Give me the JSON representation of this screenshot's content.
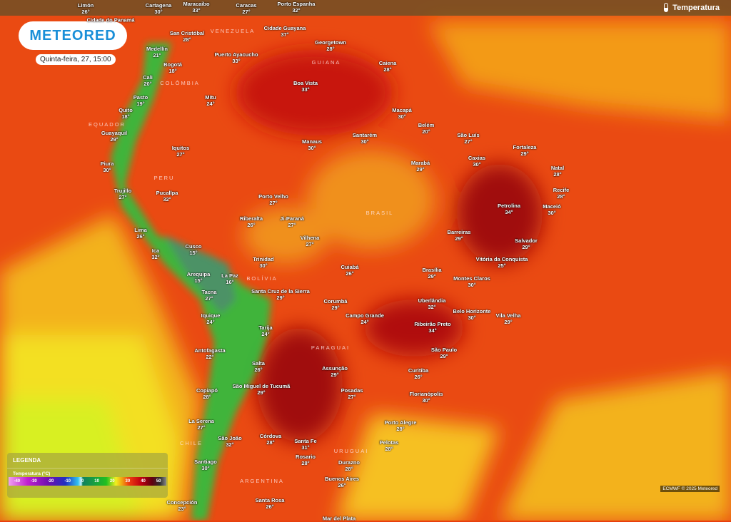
{
  "header": {
    "layer_label": "Temperatura",
    "layer_icon": "thermometer-icon"
  },
  "brand": {
    "logo_text": "METEORED",
    "datetime": "Quinta-feira, 27, 15:00"
  },
  "legend": {
    "title": "LEGENDA",
    "subtitle": "Temperatura (°C)",
    "ticks": [
      "-40",
      "-30",
      "-20",
      "-10",
      "0",
      "10",
      "20",
      "30",
      "40",
      "50"
    ]
  },
  "credit": "ECMWF © 2025 Meteored",
  "countries": [
    "VENEZUELA",
    "COLÔMBIA",
    "GUIANA",
    "EQUADOR",
    "PERU",
    "BRASIL",
    "BOLÍVIA",
    "PARAGUAI",
    "CHILE",
    "URUGUAI",
    "ARGENTINA"
  ],
  "cities": [
    {
      "name": "Limón",
      "temp": "26°"
    },
    {
      "name": "Cartagena",
      "temp": "30°"
    },
    {
      "name": "Maracaibo",
      "temp": "33°"
    },
    {
      "name": "Caracas",
      "temp": "27°"
    },
    {
      "name": "Porto Espanha",
      "temp": "32°"
    },
    {
      "name": "Cidade do Panamá",
      "temp": ""
    },
    {
      "name": "San Cristóbal",
      "temp": "28°"
    },
    {
      "name": "Cidade Guayana",
      "temp": "37°"
    },
    {
      "name": "Georgetown",
      "temp": "28°"
    },
    {
      "name": "Caiena",
      "temp": "28°"
    },
    {
      "name": "Puerto Ayacucho",
      "temp": "33°"
    },
    {
      "name": "Medellín",
      "temp": "21°"
    },
    {
      "name": "Bogotá",
      "temp": "18°"
    },
    {
      "name": "Cali",
      "temp": "20°"
    },
    {
      "name": "Boa Vista",
      "temp": "33°"
    },
    {
      "name": "Pasto",
      "temp": "19°"
    },
    {
      "name": "Mitu",
      "temp": "24°"
    },
    {
      "name": "Quito",
      "temp": "18°"
    },
    {
      "name": "Guayaquil",
      "temp": "29°"
    },
    {
      "name": "Macapá",
      "temp": "30°"
    },
    {
      "name": "Belém",
      "temp": "20°"
    },
    {
      "name": "Santarém",
      "temp": "30°"
    },
    {
      "name": "São Luís",
      "temp": "27°"
    },
    {
      "name": "Manaus",
      "temp": "30°"
    },
    {
      "name": "Fortaleza",
      "temp": "29°"
    },
    {
      "name": "Iquitos",
      "temp": "27°"
    },
    {
      "name": "Caxias",
      "temp": "30°"
    },
    {
      "name": "Marabá",
      "temp": "29°"
    },
    {
      "name": "Natal",
      "temp": "28°"
    },
    {
      "name": "Piura",
      "temp": "30°"
    },
    {
      "name": "Pucallpa",
      "temp": "32°"
    },
    {
      "name": "Trujillo",
      "temp": "27°"
    },
    {
      "name": "Porto Velho",
      "temp": "27°"
    },
    {
      "name": "Recife",
      "temp": "28°"
    },
    {
      "name": "Petrolina",
      "temp": "34°"
    },
    {
      "name": "Maceió",
      "temp": "30°"
    },
    {
      "name": "Riberalta",
      "temp": "26°"
    },
    {
      "name": "Ji-Paraná",
      "temp": "27°"
    },
    {
      "name": "Lima",
      "temp": "26°"
    },
    {
      "name": "Barreiras",
      "temp": "29°"
    },
    {
      "name": "Vilhena",
      "temp": "27°"
    },
    {
      "name": "Salvador",
      "temp": "29°"
    },
    {
      "name": "Cusco",
      "temp": "15°"
    },
    {
      "name": "Ica",
      "temp": "32°"
    },
    {
      "name": "Trinidad",
      "temp": "30°"
    },
    {
      "name": "Vitória da Conquista",
      "temp": "25°"
    },
    {
      "name": "Cuiabá",
      "temp": "26°"
    },
    {
      "name": "Brasília",
      "temp": "29°"
    },
    {
      "name": "Arequipa",
      "temp": "15°"
    },
    {
      "name": "La Paz",
      "temp": "16°"
    },
    {
      "name": "Montes Claros",
      "temp": "30°"
    },
    {
      "name": "Santa Cruz de la Sierra",
      "temp": "29°"
    },
    {
      "name": "Tacna",
      "temp": "27°"
    },
    {
      "name": "Uberlândia",
      "temp": "32°"
    },
    {
      "name": "Corumbá",
      "temp": "29°"
    },
    {
      "name": "Iquique",
      "temp": "24°"
    },
    {
      "name": "Belo Horizonte",
      "temp": "30°"
    },
    {
      "name": "Campo Grande",
      "temp": "24°"
    },
    {
      "name": "Vila Velha",
      "temp": "29°"
    },
    {
      "name": "Ribeirão Preto",
      "temp": "34°"
    },
    {
      "name": "Tarija",
      "temp": "24°"
    },
    {
      "name": "Antofagasta",
      "temp": "22°"
    },
    {
      "name": "São Paulo",
      "temp": "29°"
    },
    {
      "name": "Salta",
      "temp": "26°"
    },
    {
      "name": "Assunção",
      "temp": "29°"
    },
    {
      "name": "Curitiba",
      "temp": "26°"
    },
    {
      "name": "Copiapó",
      "temp": "28°"
    },
    {
      "name": "São Miguel de Tucumã",
      "temp": "29°"
    },
    {
      "name": "Posadas",
      "temp": "27°"
    },
    {
      "name": "Florianópolis",
      "temp": "30°"
    },
    {
      "name": "La Serena",
      "temp": "27°"
    },
    {
      "name": "Porto Alegre",
      "temp": "28°"
    },
    {
      "name": "Córdova",
      "temp": "28°"
    },
    {
      "name": "Santa Fe",
      "temp": "31°"
    },
    {
      "name": "São João",
      "temp": "32°"
    },
    {
      "name": "Pelotas",
      "temp": "28°"
    },
    {
      "name": "Rosario",
      "temp": "28°"
    },
    {
      "name": "Durazno",
      "temp": "28°"
    },
    {
      "name": "Santiago",
      "temp": "30°"
    },
    {
      "name": "Buenos Aires",
      "temp": "26°"
    },
    {
      "name": "Concepción",
      "temp": "23°"
    },
    {
      "name": "Santa Rosa",
      "temp": "26°"
    },
    {
      "name": "Mar del Plata",
      "temp": ""
    }
  ],
  "colors": {
    "brand": "#1a8fd8",
    "hot": "#c00010",
    "warm": "#f04010",
    "mild": "#f0c020",
    "cool": "#20c020"
  }
}
